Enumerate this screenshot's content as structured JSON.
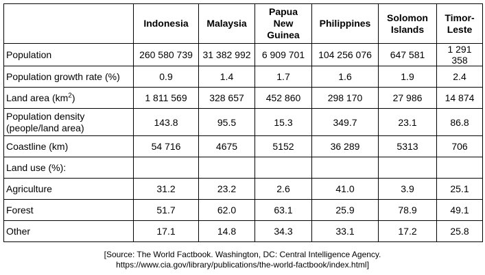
{
  "table": {
    "columns": [
      "Indonesia",
      "Malaysia",
      "Papua New Guinea",
      "Philippines",
      "Solomon Islands",
      "Timor-Leste"
    ],
    "column_lines": [
      [
        "Indonesia"
      ],
      [
        "Malaysia"
      ],
      [
        "Papua",
        "New",
        "Guinea"
      ],
      [
        "Philippines"
      ],
      [
        "Solomon",
        "Islands"
      ],
      [
        "Timor-",
        "Leste"
      ]
    ],
    "rows": [
      {
        "label": "Population",
        "values": [
          "260 580 739",
          "31 382 992",
          "6 909 701",
          "104 256 076",
          "647 581",
          "1 291 358"
        ]
      },
      {
        "label": "Population growth rate (%)",
        "values": [
          "0.9",
          "1.4",
          "1.7",
          "1.6",
          "1.9",
          "2.4"
        ]
      },
      {
        "label": "Land area (km",
        "label_sup": "2",
        "label_after": ")",
        "values": [
          "1 811 569",
          "328 657",
          "452 860",
          "298 170",
          "27 986",
          "14 874"
        ]
      },
      {
        "label_lines": [
          "Population density",
          "(people/land area)"
        ],
        "values": [
          "143.8",
          "95.5",
          "15.3",
          "349.7",
          "23.1",
          "86.8"
        ]
      },
      {
        "label": "Coastline (km)",
        "values": [
          "54 716",
          "4675",
          "5152",
          "36 289",
          "5313",
          "706"
        ]
      },
      {
        "label": "Land use (%):",
        "values": [
          "",
          "",
          "",
          "",
          "",
          ""
        ]
      },
      {
        "label": "Agriculture",
        "values": [
          "31.2",
          "23.2",
          "2.6",
          "41.0",
          "3.9",
          "25.1"
        ]
      },
      {
        "label": "Forest",
        "values": [
          "51.7",
          "62.0",
          "63.1",
          "25.9",
          "78.9",
          "49.1"
        ]
      },
      {
        "label": "Other",
        "values": [
          "17.1",
          "14.8",
          "34.3",
          "33.1",
          "17.2",
          "25.8"
        ]
      }
    ]
  },
  "source": {
    "line1": "[Source: The World Factbook. Washington, DC: Central Intelligence Agency.",
    "line2": "https://www.cia.gov/library/publications/the-world-factbook/index.html]"
  }
}
